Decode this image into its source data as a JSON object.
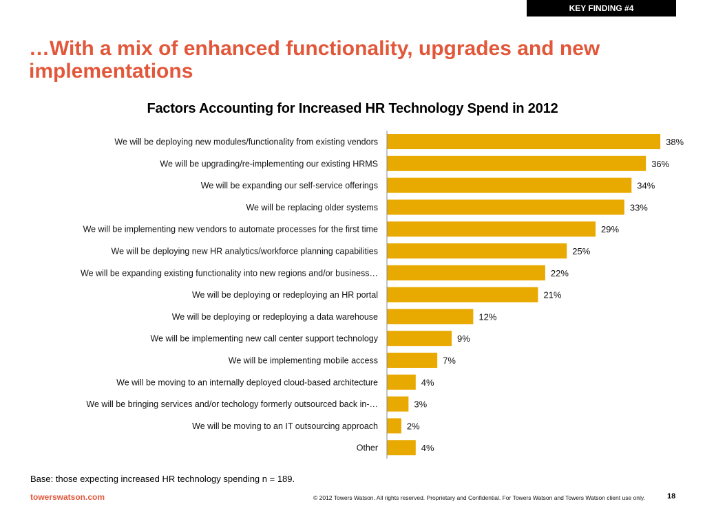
{
  "header": {
    "badge": "KEY FINDING #4",
    "title": "…With a mix of enhanced functionality, upgrades and new implementations"
  },
  "chart_data": {
    "type": "bar",
    "orientation": "horizontal",
    "title": "Factors Accounting for Increased HR Technology Spend in 2012",
    "xlabel": "",
    "ylabel": "",
    "value_suffix": "%",
    "xlim": [
      0,
      40
    ],
    "grid": false,
    "legend": "none",
    "bar_color": "#e8a900",
    "categories": [
      "We will be deploying new modules/functionality from existing vendors",
      "We will be upgrading/re-implementing our existing HRMS",
      "We will be expanding our self-service offerings",
      "We will be replacing older systems",
      "We will be implementing new vendors to automate processes for the first time",
      "We will be deploying new HR analytics/workforce planning capabilities",
      "We will be expanding existing functionality into new regions and/or business…",
      "We will be deploying or redeploying an HR portal",
      "We will be deploying or redeploying a data warehouse",
      "We will be implementing new call center support technology",
      "We will be implementing mobile access",
      "We will be moving to an internally deployed cloud-based architecture",
      "We will be bringing services and/or techology formerly outsourced back in-…",
      "We will be moving to an IT outsourcing approach",
      "Other"
    ],
    "values": [
      38,
      36,
      34,
      33,
      29,
      25,
      22,
      21,
      12,
      9,
      7,
      4,
      3,
      2,
      4
    ],
    "data_labels": [
      "38%",
      "36%",
      "34%",
      "33%",
      "29%",
      "25%",
      "22%",
      "21%",
      "12%",
      "9%",
      "7%",
      "4%",
      "3%",
      "2%",
      "4%"
    ]
  },
  "footer": {
    "base_note": "Base: those expecting increased HR technology spending n = 189.",
    "brand": "towerswatson.com",
    "copyright": "© 2012 Towers Watson. All rights reserved. Proprietary and Confidential. For Towers Watson and Towers Watson client use only.",
    "page_number": "18"
  },
  "colors": {
    "accent": "#e2573a",
    "bar": "#e8a900",
    "badge_bg": "#000000"
  }
}
